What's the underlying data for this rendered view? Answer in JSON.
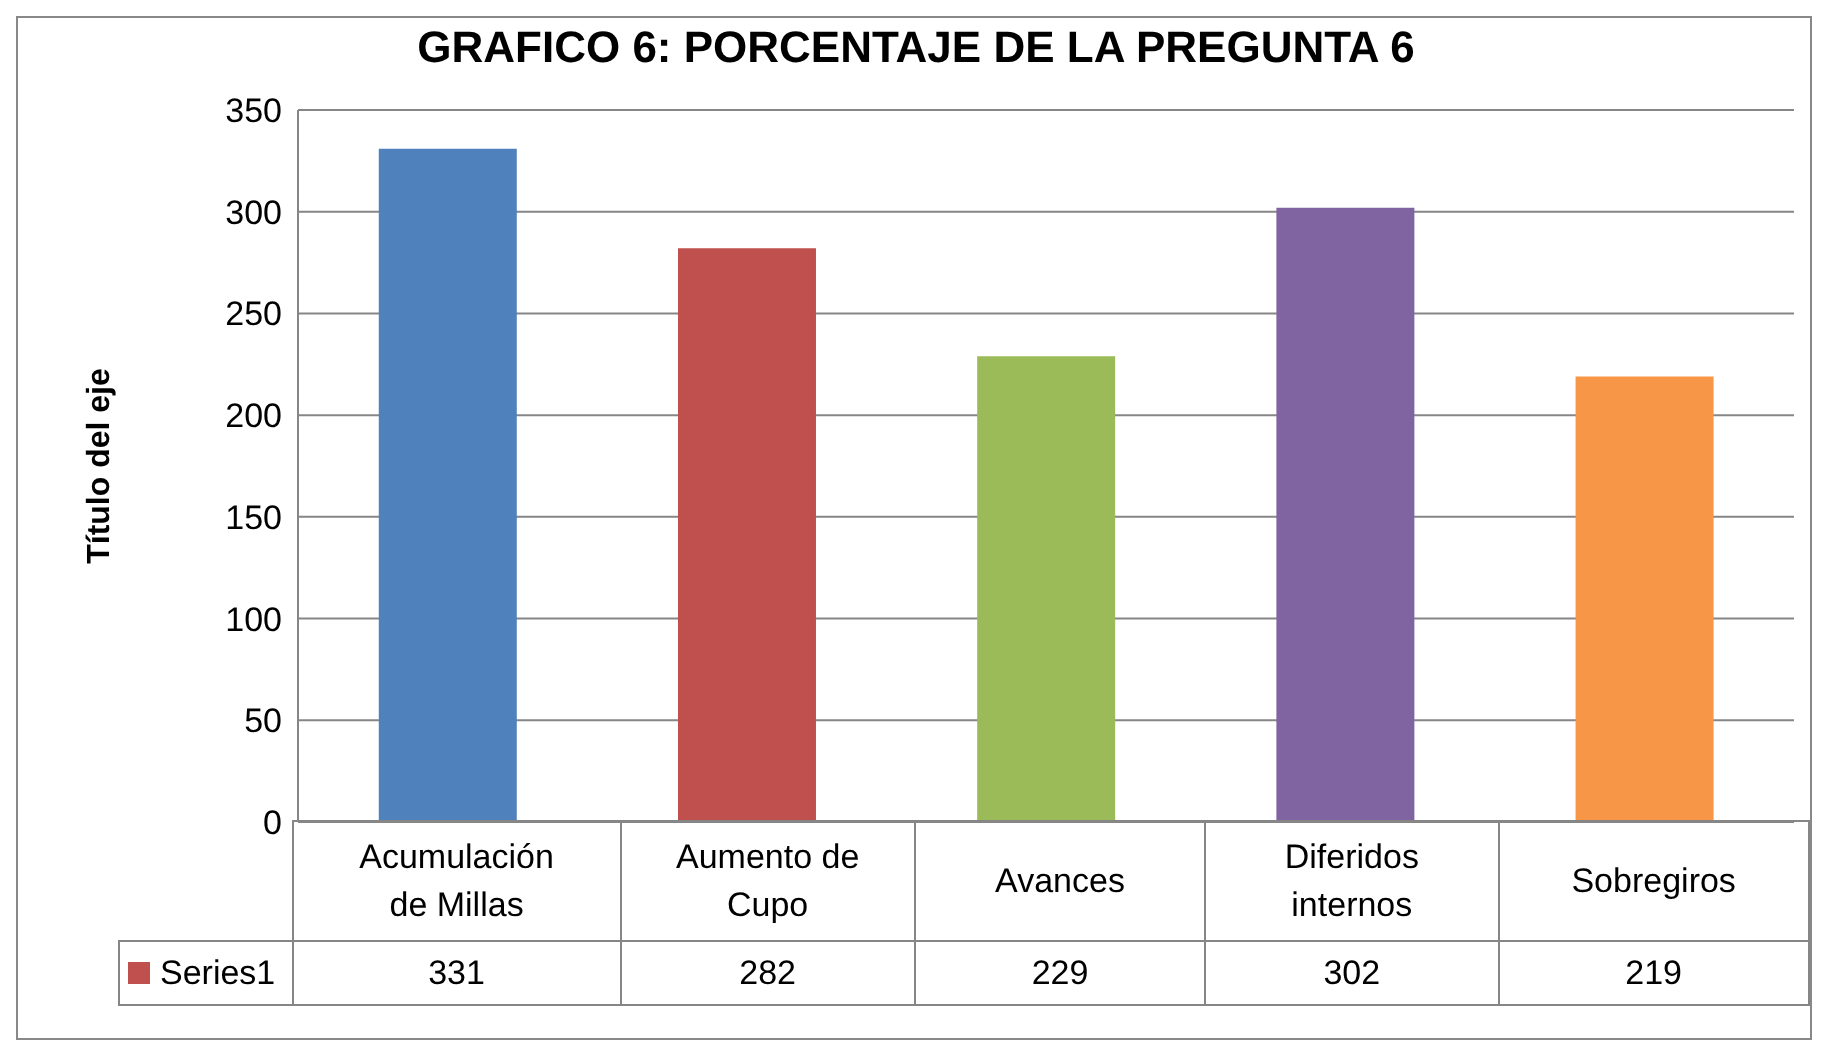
{
  "chart_data": {
    "type": "bar",
    "title": "GRAFICO 6: PORCENTAJE DE LA PREGUNTA 6",
    "ylabel": "Título del eje",
    "categories": [
      "Acumulación de Millas",
      "Aumento de Cupo",
      "Avances",
      "Diferidos internos",
      "Sobregiros"
    ],
    "series": [
      {
        "name": "Series1",
        "color": "#c0504d",
        "colors": [
          "#4f81bd",
          "#c0504d",
          "#9bbb59",
          "#8064a2",
          "#f79646"
        ],
        "values": [
          331,
          282,
          229,
          302,
          219
        ]
      }
    ],
    "ylim": [
      0,
      350
    ],
    "yticks": [
      0,
      50,
      100,
      150,
      200,
      250,
      300,
      350
    ],
    "grid": "y",
    "data_labels": true,
    "legend": "bottom"
  }
}
